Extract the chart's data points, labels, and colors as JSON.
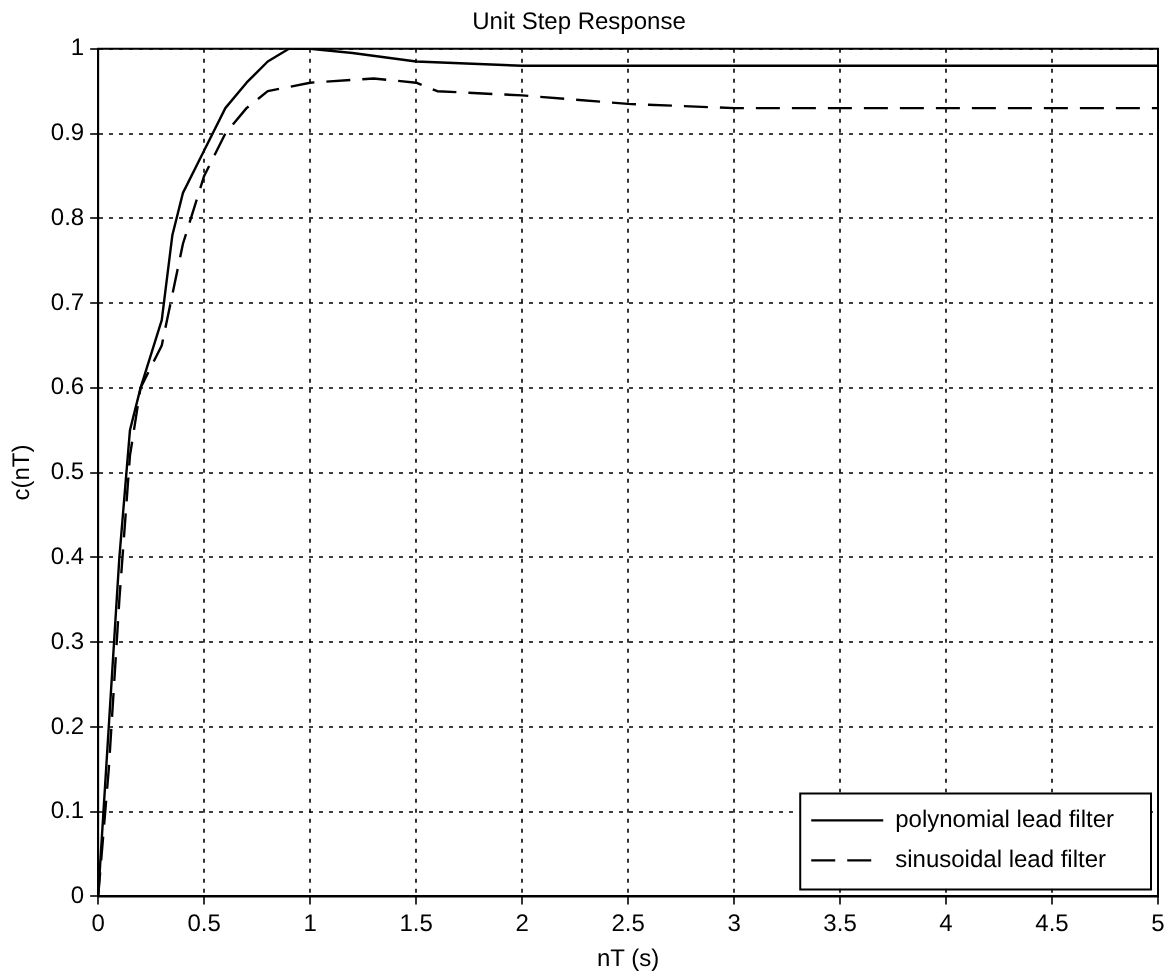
{
  "chart_data": {
    "type": "line",
    "title": "Unit Step Response",
    "xlabel": "nT (s)",
    "ylabel": "c(nT)",
    "xlim": [
      0,
      5
    ],
    "xticks": [
      0,
      0.5,
      1,
      1.5,
      2,
      2.5,
      3,
      3.5,
      4,
      4.5,
      5
    ],
    "ylim": [
      0,
      1
    ],
    "yticks": [
      0,
      0.1,
      0.2,
      0.3,
      0.4,
      0.5,
      0.6,
      0.7,
      0.8,
      0.9,
      1
    ],
    "grid": true,
    "legend": "bottom right",
    "marker": "none",
    "series": [
      {
        "name": "polynomial lead filter",
        "color": "#000000",
        "line_style": "solid",
        "x": [
          0,
          0.05,
          0.1,
          0.15,
          0.2,
          0.3,
          0.35,
          0.4,
          0.5,
          0.6,
          0.7,
          0.8,
          0.9,
          1,
          1.2,
          1.5,
          2,
          3,
          5
        ],
        "values": [
          0,
          0.2,
          0.4,
          0.55,
          0.6,
          0.68,
          0.78,
          0.83,
          0.88,
          0.93,
          0.96,
          0.985,
          1,
          1,
          0.995,
          0.985,
          0.98,
          0.98,
          0.98
        ]
      },
      {
        "name": "sinusoidal lead filter",
        "color": "#000000",
        "line_style": "dashed",
        "x": [
          0,
          0.05,
          0.1,
          0.15,
          0.2,
          0.3,
          0.4,
          0.5,
          0.6,
          0.7,
          0.8,
          1,
          1.3,
          1.5,
          1.6,
          2,
          2.5,
          3,
          5
        ],
        "values": [
          0,
          0.15,
          0.35,
          0.52,
          0.6,
          0.65,
          0.77,
          0.85,
          0.9,
          0.93,
          0.95,
          0.96,
          0.965,
          0.96,
          0.95,
          0.945,
          0.935,
          0.93,
          0.93
        ]
      }
    ]
  }
}
